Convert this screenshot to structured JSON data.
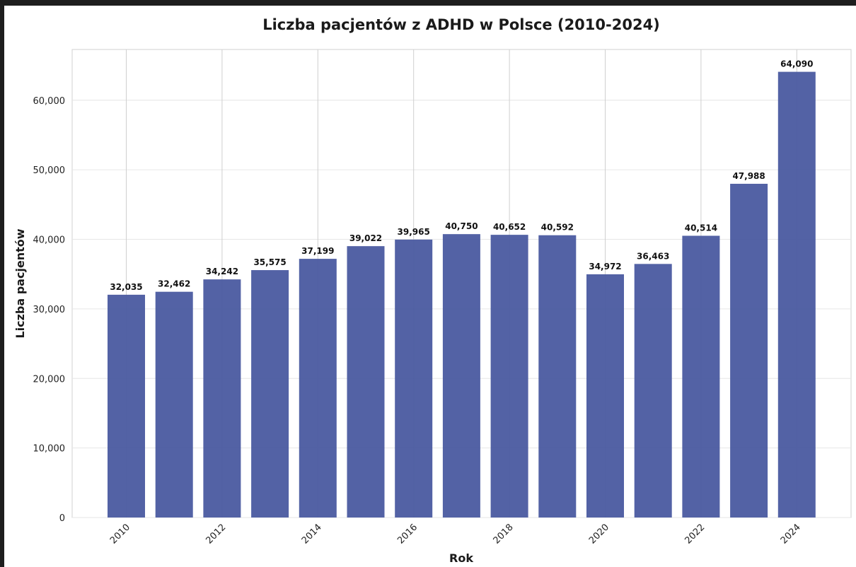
{
  "chart_data": {
    "type": "bar",
    "title": "Liczba pacjentów z ADHD w Polsce (2010-2024)",
    "xlabel": "Rok",
    "ylabel": "Liczba pacjentów",
    "categories": [
      "2010",
      "2011",
      "2012",
      "2013",
      "2014",
      "2015",
      "2016",
      "2017",
      "2018",
      "2019",
      "2020",
      "2021",
      "2022",
      "2023",
      "2024"
    ],
    "values": [
      32035,
      32462,
      34242,
      35575,
      37199,
      39022,
      39965,
      40750,
      40652,
      40592,
      34972,
      36463,
      40514,
      47988,
      64090
    ],
    "value_labels": [
      "32,035",
      "32,462",
      "34,242",
      "35,575",
      "37,199",
      "39,022",
      "39,965",
      "40,750",
      "40,652",
      "40,592",
      "34,972",
      "36,463",
      "40,514",
      "47,988",
      "64,090"
    ],
    "x_tick_labels": [
      "2010",
      "2012",
      "2014",
      "2016",
      "2018",
      "2020",
      "2022",
      "2024"
    ],
    "y_ticks": [
      0,
      10000,
      20000,
      30000,
      40000,
      50000,
      60000
    ],
    "y_tick_labels": [
      "0",
      "10,000",
      "20,000",
      "30,000",
      "40,000",
      "50,000",
      "60,000"
    ],
    "ylim": [
      0,
      67300
    ],
    "grid": true,
    "bar_color": "#4a5aa0"
  }
}
